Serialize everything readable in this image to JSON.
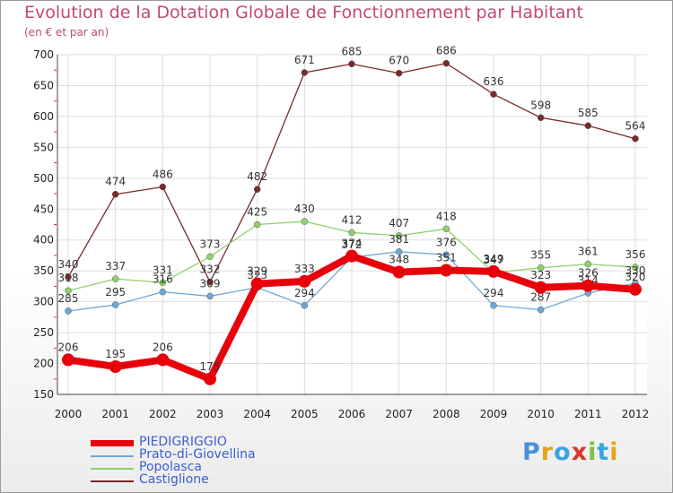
{
  "title": "Evolution de la Dotation Globale de Fonctionnement par Habitant",
  "subtitle": "(en € et par an)",
  "logo": {
    "text": "Proxiti",
    "letters": [
      {
        "ch": "P",
        "color": "#4a90d9"
      },
      {
        "ch": "r",
        "color": "#e3a21a"
      },
      {
        "ch": "o",
        "color": "#3aa5dc"
      },
      {
        "ch": "x",
        "color": "#d9362b"
      },
      {
        "ch": "i",
        "color": "#7cc142"
      },
      {
        "ch": "t",
        "color": "#3aa5dc"
      },
      {
        "ch": "i",
        "color": "#e3a21a"
      }
    ]
  },
  "chart_data": {
    "type": "line",
    "x": [
      "2000",
      "2001",
      "2002",
      "2003",
      "2004",
      "2005",
      "2006",
      "2007",
      "2008",
      "2009",
      "2010",
      "2011",
      "2012"
    ],
    "ylim": [
      150,
      700
    ],
    "yticks": [
      150,
      200,
      250,
      300,
      350,
      400,
      450,
      500,
      550,
      600,
      650,
      700
    ],
    "grid": true,
    "legend_position": "bottom-left",
    "series": [
      {
        "name": "PIEDIGRIGGIO",
        "color": "#e8000b",
        "values": [
          206,
          195,
          206,
          175,
          329,
          333,
          374,
          348,
          351,
          349,
          323,
          326,
          320
        ]
      },
      {
        "name": "Prato-di-Giovellina",
        "color": "#6fa8d6",
        "values": [
          285,
          295,
          316,
          309,
          323,
          294,
          372,
          381,
          376,
          294,
          287,
          314,
          330
        ]
      },
      {
        "name": "Popolasca",
        "color": "#8fd16a",
        "values": [
          318,
          337,
          331,
          373,
          425,
          430,
          412,
          407,
          418,
          347,
          355,
          361,
          356
        ]
      },
      {
        "name": "Castiglione",
        "color": "#7a2a2a",
        "values": [
          340,
          474,
          486,
          332,
          482,
          671,
          685,
          670,
          686,
          636,
          598,
          585,
          564
        ]
      }
    ]
  }
}
